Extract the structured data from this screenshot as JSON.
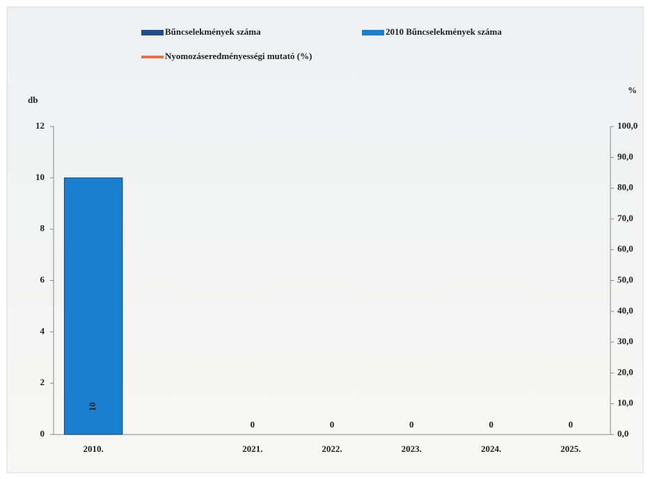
{
  "chart_data": {
    "type": "bar",
    "categories": [
      "2010.",
      null,
      "2021.",
      "2022.",
      "2023.",
      "2024.",
      "2025."
    ],
    "series": [
      {
        "name": "Bűncselekmények száma",
        "color": "#1f4e8c",
        "values": [
          null,
          null,
          0,
          0,
          0,
          0,
          0
        ]
      },
      {
        "name": "2010 Bűncselekmények száma",
        "color": "#1b7fd0",
        "values": [
          10,
          null,
          null,
          null,
          null,
          null,
          null
        ]
      },
      {
        "name": "Nyomozáseredményességi mutató (%)",
        "color": "#e8704a",
        "type": "line",
        "axis": "y2",
        "values": [
          null,
          null,
          null,
          null,
          null,
          null,
          null
        ]
      }
    ],
    "y_label": "db",
    "y2_label": "%",
    "ylim": [
      0,
      12
    ],
    "yticks": [
      0,
      2,
      4,
      6,
      8,
      10,
      12
    ],
    "y2lim": [
      0,
      100
    ],
    "y2ticks": [
      {
        "value": 0,
        "label": "0,0"
      },
      {
        "value": 10,
        "label": "10,0"
      },
      {
        "value": 20,
        "label": "20,0"
      },
      {
        "value": 30,
        "label": "30,0"
      },
      {
        "value": 40,
        "label": "40,0"
      },
      {
        "value": 50,
        "label": "50,0"
      },
      {
        "value": 60,
        "label": "60,0"
      },
      {
        "value": 70,
        "label": "70,0"
      },
      {
        "value": 80,
        "label": "80,0"
      },
      {
        "value": 90,
        "label": "90,0"
      },
      {
        "value": 100,
        "label": "100,0"
      }
    ]
  }
}
